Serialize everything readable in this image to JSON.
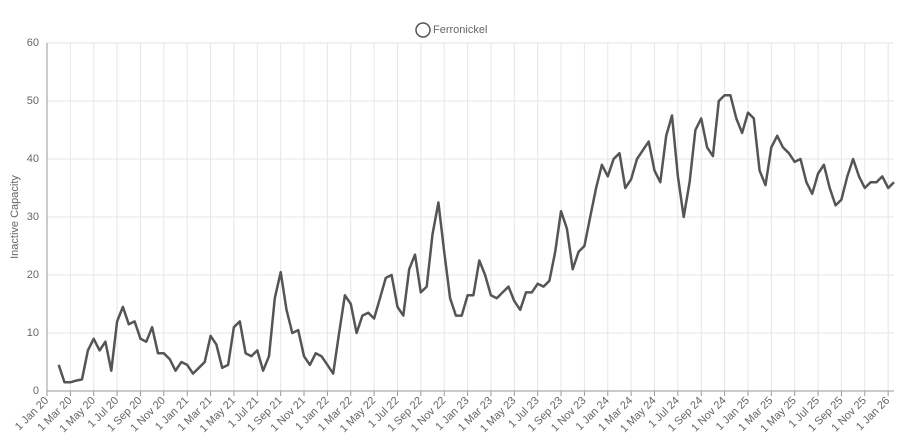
{
  "chart_data": {
    "type": "line",
    "y_label": "Inactive Capacity",
    "categories": [
      "1 Jan 20",
      null,
      null,
      null,
      "1 Mar 20",
      null,
      null,
      null,
      "1 May 20",
      null,
      null,
      null,
      "1 Jul 20",
      null,
      null,
      null,
      "1 Sep 20",
      null,
      null,
      null,
      "1 Nov 20",
      null,
      null,
      null,
      "1 Jan 21",
      null,
      null,
      null,
      "1 Mar 21",
      null,
      null,
      null,
      "1 May 21",
      null,
      null,
      null,
      "1 Jul 21",
      null,
      null,
      null,
      "1 Sep 21",
      null,
      null,
      null,
      "1 Nov 21",
      null,
      null,
      null,
      "1 Jan 22",
      null,
      null,
      null,
      "1 Mar 22",
      null,
      null,
      null,
      "1 May 22",
      null,
      null,
      null,
      "1 Jul 22",
      null,
      null,
      null,
      "1 Sep 22",
      null,
      null,
      null,
      "1 Nov 22",
      null,
      null,
      null,
      "1 Jan 23",
      null,
      null,
      null,
      "1 Mar 23",
      null,
      null,
      null,
      "1 May 23",
      null,
      null,
      null,
      "1 Jul 23",
      null,
      null,
      null,
      "1 Sep 23",
      null,
      null,
      null,
      "1 Nov 23",
      null,
      null,
      null,
      "1 Jan 24",
      null,
      null,
      null,
      "1 Mar 24",
      null,
      null,
      null,
      "1 May 24",
      null,
      null,
      null,
      "1 Jul 24",
      null,
      null,
      null,
      "1 Sep 24",
      null,
      null,
      null,
      "1 Nov 24",
      null,
      null,
      null,
      "1 Jan 25",
      null,
      null,
      null,
      "1 Mar 25",
      null,
      null,
      null,
      "1 May 25",
      null,
      null,
      null,
      "1 Jul 25",
      null,
      null,
      null,
      "1 Sep 25",
      null,
      null,
      null,
      "1 Nov 25",
      null,
      null,
      null,
      "1 Jan 26",
      null
    ],
    "series": [
      {
        "name": "Ferronickel",
        "color": "#555555",
        "values": [
          null,
          null,
          4.5,
          1.5,
          1.5,
          1.8,
          2,
          7,
          9,
          7,
          8.5,
          3.5,
          12,
          14.5,
          11.5,
          12,
          9,
          8.5,
          11,
          6.5,
          6.5,
          5.5,
          3.5,
          5,
          4.5,
          3,
          4,
          5,
          9.5,
          8,
          4,
          4.5,
          11,
          12,
          6.5,
          6,
          7,
          3.5,
          6,
          16,
          20.5,
          14,
          10,
          10.5,
          6,
          4.5,
          6.5,
          6,
          4.5,
          3,
          10,
          16.5,
          15,
          10,
          13,
          13.5,
          12.5,
          16,
          19.5,
          20,
          14.5,
          13,
          21,
          23.5,
          17,
          18,
          27,
          32.5,
          24,
          16,
          13,
          13,
          16.5,
          16.5,
          22.5,
          20,
          16.5,
          16,
          17,
          18,
          15.5,
          14,
          17,
          17,
          18.5,
          18,
          19,
          24,
          31,
          28,
          21,
          24,
          25,
          30,
          35,
          39,
          37,
          40,
          41,
          35,
          36.5,
          40,
          41.5,
          43,
          38,
          36,
          44,
          47.5,
          37,
          30,
          36,
          45,
          47,
          42,
          40.5,
          50,
          51,
          51,
          47,
          44.5,
          48,
          47,
          38,
          35.5,
          42,
          44,
          42,
          41,
          39.5,
          40,
          36,
          34,
          37.5,
          39,
          35,
          32,
          33,
          37,
          40,
          37,
          35,
          36,
          36,
          37,
          35,
          36
        ]
      }
    ],
    "ylim": [
      0,
      60
    ],
    "yticks": [
      0,
      10,
      20,
      30,
      40,
      50,
      60
    ],
    "grid": true
  }
}
